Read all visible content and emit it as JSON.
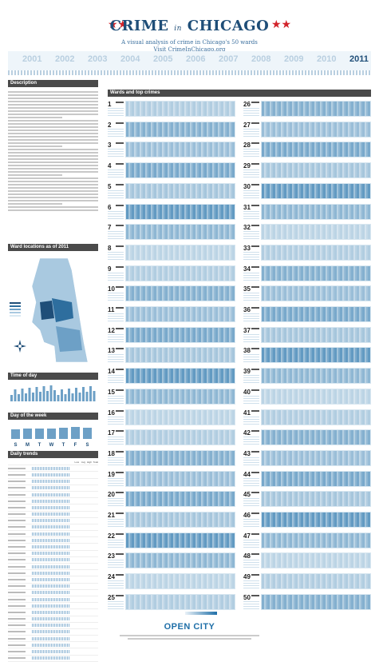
{
  "header": {
    "title_part1": "CRIME",
    "title_in": "in",
    "title_part2": "CHICAGO",
    "subtitle": "A visual analysis of crime in Chicago's 50 wards",
    "url": "Visit CrimeInChicago.org",
    "star_glyph": "★★",
    "accent_color": "#d2232a",
    "brand_color": "#1f4e78"
  },
  "years": [
    "2001",
    "2002",
    "2003",
    "2004",
    "2005",
    "2006",
    "2007",
    "2008",
    "2009",
    "2010",
    "2011"
  ],
  "active_year": "2011",
  "sections": {
    "description": "Description",
    "ward_locations": "Ward locations as of 2011",
    "time_of_day": "Time of day",
    "day_of_week": "Day of the week",
    "daily_trends": "Daily trends",
    "wards_top_crimes": "Wards and top crimes"
  },
  "days": [
    "S",
    "M",
    "T",
    "W",
    "T",
    "F",
    "S"
  ],
  "trends_columns": [
    "Low",
    "Avg",
    "High",
    "Total"
  ],
  "wards": [
    "1",
    "2",
    "3",
    "4",
    "5",
    "6",
    "7",
    "8",
    "9",
    "10",
    "11",
    "12",
    "13",
    "14",
    "15",
    "16",
    "17",
    "18",
    "19",
    "20",
    "21",
    "22",
    "23",
    "24",
    "25",
    "26",
    "27",
    "28",
    "29",
    "30",
    "31",
    "32",
    "33",
    "34",
    "35",
    "36",
    "37",
    "38",
    "39",
    "40",
    "41",
    "42",
    "43",
    "44",
    "45",
    "46",
    "47",
    "48",
    "49",
    "50"
  ],
  "footer": {
    "brand": "OPEN CITY"
  }
}
